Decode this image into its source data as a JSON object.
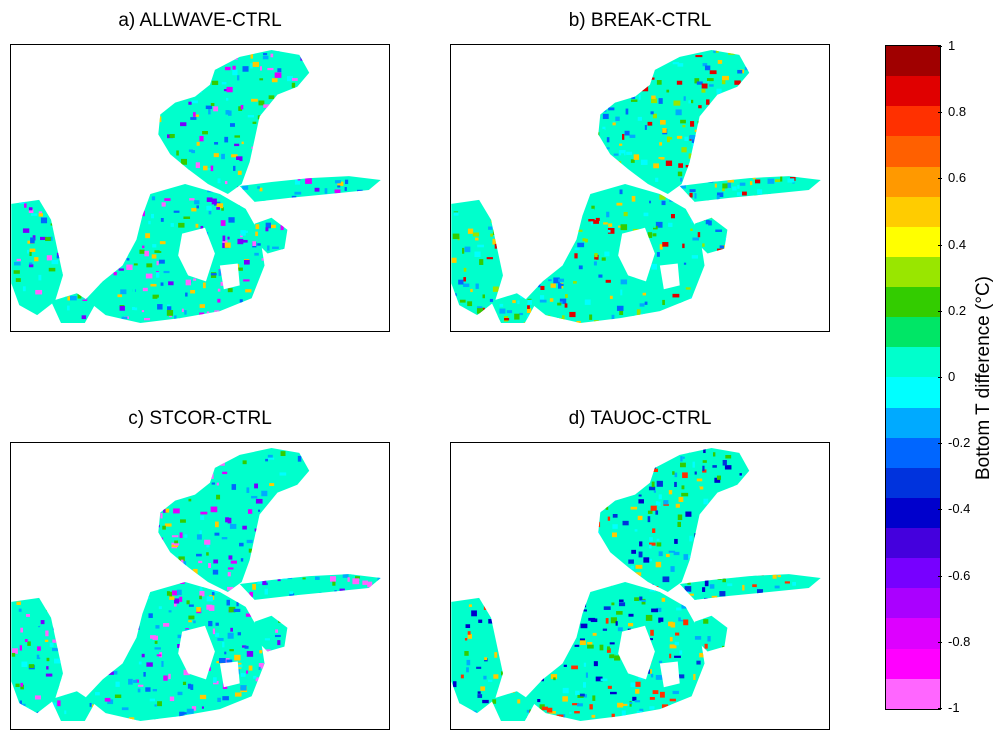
{
  "panels": [
    {
      "title": "a) ALLWAVE-CTRL",
      "tone": "cool-purple"
    },
    {
      "title": "b) BREAK-CTRL",
      "tone": "cool-cyan"
    },
    {
      "title": "c) STCOR-CTRL",
      "tone": "cool-purple"
    },
    {
      "title": "d) TAUOC-CTRL",
      "tone": "mixed-blue"
    }
  ],
  "colorbar": {
    "label": "Bottom T difference (°C)",
    "min": -1,
    "max": 1,
    "tick_labels": [
      "1",
      "0.8",
      "0.6",
      "0.4",
      "0.2",
      "0",
      "-0.2",
      "-0.4",
      "-0.6",
      "-0.8",
      "-1"
    ],
    "colors": [
      "#a00000",
      "#e00000",
      "#ff3000",
      "#ff6000",
      "#ff9900",
      "#ffcc00",
      "#ffff00",
      "#99e600",
      "#33cc00",
      "#00e666",
      "#00ffcc",
      "#00ffff",
      "#00aaff",
      "#0066ff",
      "#0033dd",
      "#0000cc",
      "#4400dd",
      "#7700ff",
      "#aa00ff",
      "#dd00ff",
      "#ff00ff",
      "#ff66ff"
    ]
  },
  "colors": {
    "land": "#ffffff",
    "frame": "#000000",
    "sea_base": "#00ffcc",
    "sea_shallow": "#00ffff"
  }
}
